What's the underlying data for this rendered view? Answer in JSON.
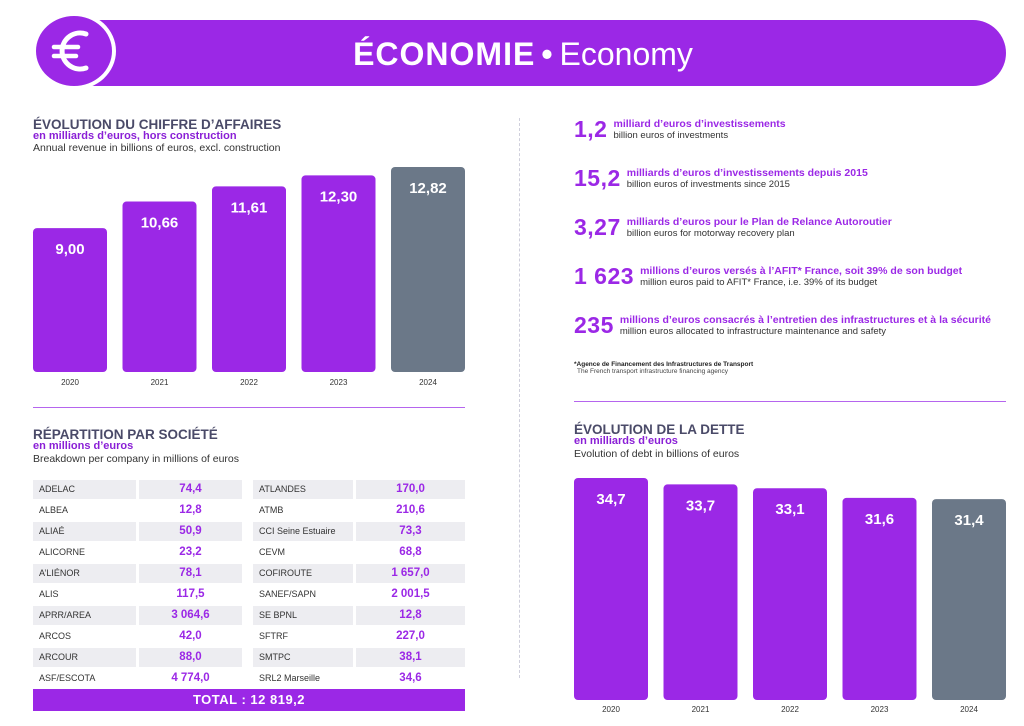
{
  "header": {
    "title_fr": "ÉCONOMIE",
    "separator": "•",
    "title_en": "Economy",
    "icon": "euro-icon"
  },
  "colors": {
    "purple": "#9b28e6",
    "gray": "#6b7888",
    "text": "#4a4a68"
  },
  "revenue": {
    "title": "ÉVOLUTION DU CHIFFRE D’AFFAIRES",
    "subtitle": "en milliards d’euros, hors construction",
    "subtitle_en": "Annual revenue in billions of euros, excl. construction"
  },
  "breakdown": {
    "title": "RÉPARTITION PAR SOCIÉTÉ",
    "subtitle": "en millions d’euros",
    "subtitle_en": "Breakdown per company in millions of euros",
    "rows": [
      [
        {
          "name": "ADELAC",
          "value": "74,4"
        },
        {
          "name": "ATLANDES",
          "value": "170,0"
        }
      ],
      [
        {
          "name": "ALBEA",
          "value": "12,8"
        },
        {
          "name": "ATMB",
          "value": "210,6"
        }
      ],
      [
        {
          "name": "ALIAÉ",
          "value": "50,9"
        },
        {
          "name": "CCI Seine Estuaire",
          "value": "73,3"
        }
      ],
      [
        {
          "name": "ALICORNE",
          "value": "23,2"
        },
        {
          "name": "CEVM",
          "value": "68,8"
        }
      ],
      [
        {
          "name": "A’LIÉNOR",
          "value": "78,1"
        },
        {
          "name": "COFIROUTE",
          "value": "1 657,0"
        }
      ],
      [
        {
          "name": "ALIS",
          "value": "117,5"
        },
        {
          "name": "SANEF/SAPN",
          "value": "2 001,5"
        }
      ],
      [
        {
          "name": "APRR/AREA",
          "value": "3 064,6"
        },
        {
          "name": "SE BPNL",
          "value": "12,8"
        }
      ],
      [
        {
          "name": "ARCOS",
          "value": "42,0"
        },
        {
          "name": "SFTRF",
          "value": "227,0"
        }
      ],
      [
        {
          "name": "ARCOUR",
          "value": "88,0"
        },
        {
          "name": "SMTPC",
          "value": "38,1"
        }
      ],
      [
        {
          "name": "ASF/ESCOTA",
          "value": "4 774,0"
        },
        {
          "name": "SRL2 Marseille",
          "value": "34,6"
        }
      ]
    ],
    "total": "TOTAL : 12 819,2"
  },
  "kpis": [
    {
      "value": "1,2",
      "fr": "milliard d’euros d’investissements",
      "en": "billion euros of investments"
    },
    {
      "value": "15,2",
      "fr": "milliards d’euros d’investissements depuis 2015",
      "en": "billion euros of investments since 2015"
    },
    {
      "value": "3,27",
      "fr": "milliards d’euros pour le Plan de Relance Autoroutier",
      "en": "billion euros for motorway recovery plan"
    },
    {
      "value": "1 623",
      "fr": "millions d’euros versés à l’AFIT* France, soit 39% de son budget",
      "en": "million euros paid to AFIT* France, i.e. 39% of its budget"
    },
    {
      "value": "235",
      "fr": "millions d’euros consacrés à l’entretien des infrastructures et à la sécurité",
      "en": "million euros allocated to infrastructure maintenance and safety"
    }
  ],
  "footnote": {
    "fr": "*Agence de Financement des Infrastructures de Transport",
    "en": "The French transport infrastructure financing agency"
  },
  "debt": {
    "title": "ÉVOLUTION DE LA DETTE",
    "subtitle": "en milliards d’euros",
    "subtitle_en": "Evolution of debt in billions of euros"
  },
  "chart_data": [
    {
      "type": "bar",
      "title": "ÉVOLUTION DU CHIFFRE D’AFFAIRES",
      "categories": [
        "2020",
        "2021",
        "2022",
        "2023",
        "2024"
      ],
      "values": [
        9.0,
        10.66,
        11.61,
        12.3,
        12.82
      ],
      "labels": [
        "9,00",
        "10,66",
        "11,61",
        "12,30",
        "12,82"
      ],
      "highlight_last": true,
      "ylim": [
        0,
        12.82
      ]
    },
    {
      "type": "bar",
      "title": "ÉVOLUTION DE LA DETTE",
      "categories": [
        "2020",
        "2021",
        "2022",
        "2023",
        "2024"
      ],
      "values": [
        34.7,
        33.7,
        33.1,
        31.6,
        31.4
      ],
      "labels": [
        "34,7",
        "33,7",
        "33,1",
        "31,6",
        "31,4"
      ],
      "highlight_last": true,
      "ylim": [
        0,
        34.7
      ]
    }
  ]
}
